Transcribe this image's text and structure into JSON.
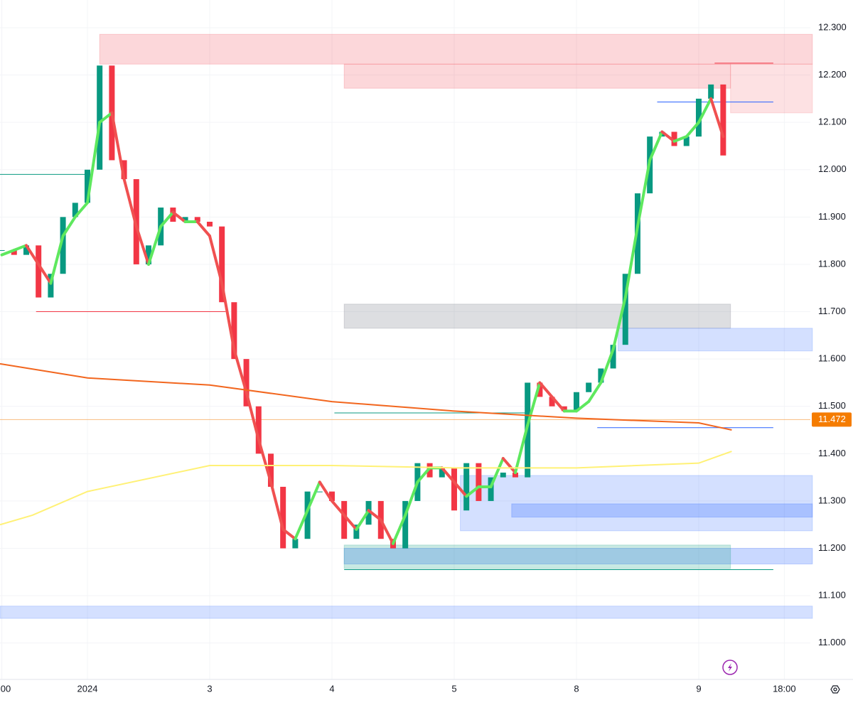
{
  "chart_data": {
    "type": "candlestick",
    "xlim": [
      -0.15,
      66.13
    ],
    "ylim": [
      10.917,
      12.3585
    ],
    "xticks": [
      {
        "value": 0,
        "label": "00"
      },
      {
        "value": 7,
        "label": "2024"
      },
      {
        "value": 17,
        "label": "3"
      },
      {
        "value": 27,
        "label": "4"
      },
      {
        "value": 37,
        "label": "5"
      },
      {
        "value": 47,
        "label": "8"
      },
      {
        "value": 57,
        "label": "9"
      },
      {
        "value": 64,
        "label": "18:00"
      }
    ],
    "yticks": [
      {
        "value": 12.3,
        "label": "12.300"
      },
      {
        "value": 12.2,
        "label": "12.200"
      },
      {
        "value": 12.1,
        "label": "12.100"
      },
      {
        "value": 12.0,
        "label": "12.000"
      },
      {
        "value": 11.9,
        "label": "11.900"
      },
      {
        "value": 11.8,
        "label": "11.800"
      },
      {
        "value": 11.7,
        "label": "11.700"
      },
      {
        "value": 11.6,
        "label": "11.600"
      },
      {
        "value": 11.5,
        "label": "11.500"
      },
      {
        "value": 11.4,
        "label": "11.400"
      },
      {
        "value": 11.3,
        "label": "11.300"
      },
      {
        "value": 11.2,
        "label": "11.200"
      },
      {
        "value": 11.1,
        "label": "11.100"
      },
      {
        "value": 11.0,
        "label": "11.000"
      }
    ],
    "grid": true,
    "last_price": 11.472,
    "last_price_color": "#f57c00",
    "zones": [
      {
        "x": [
          8.0,
          66.3
        ],
        "ylim": [
          12.223,
          12.286
        ],
        "color": "rgba(242,54,69,0.2)"
      },
      {
        "x": [
          28.0,
          59.6
        ],
        "ylim": [
          12.172,
          12.223
        ],
        "color": "rgba(242,54,69,0.2)"
      },
      {
        "x": [
          59.6,
          66.3
        ],
        "ylim": [
          12.12,
          12.223
        ],
        "color": "rgba(242,54,69,0.15)"
      },
      {
        "x": [
          28.0,
          59.6
        ],
        "ylim": [
          11.665,
          11.716
        ],
        "color": "rgba(120,123,134,0.25)"
      },
      {
        "x": [
          50.4,
          66.3
        ],
        "ylim": [
          11.617,
          11.665
        ],
        "color": "rgba(41,98,255,0.2)"
      },
      {
        "x": [
          37.5,
          66.3
        ],
        "ylim": [
          11.237,
          11.354
        ],
        "color": "rgba(41,98,255,0.2)"
      },
      {
        "x": [
          41.7,
          66.3
        ],
        "ylim": [
          11.266,
          11.294
        ],
        "color": "rgba(41,98,255,0.25)"
      },
      {
        "x": [
          28.0,
          66.3
        ],
        "ylim": [
          11.167,
          11.2
        ],
        "color": "rgba(41,98,255,0.25)"
      },
      {
        "x": [
          28.0,
          59.6
        ],
        "ylim": [
          11.157,
          11.207
        ],
        "color": "rgba(8,153,129,0.22)"
      },
      {
        "x": [
          -0.15,
          66.3
        ],
        "ylim": [
          11.052,
          11.078
        ],
        "color": "rgba(41,98,255,0.2)"
      }
    ],
    "levels": [
      {
        "x": [
          -0.15,
          7
        ],
        "value": 11.99,
        "color": "#089981"
      },
      {
        "x": [
          2.8,
          18.3
        ],
        "value": 11.7,
        "color": "#f23645"
      },
      {
        "x": [
          53.6,
          63.1
        ],
        "value": 12.143,
        "color": "#2962ff"
      },
      {
        "x": [
          58.3,
          63.1
        ],
        "value": 12.225,
        "color": "#f23645"
      },
      {
        "x": [
          48.7,
          63.1
        ],
        "value": 11.455,
        "color": "#2962ff"
      },
      {
        "x": [
          28.0,
          63.1
        ],
        "value": 11.155,
        "color": "#089981"
      },
      {
        "x": [
          27.2,
          42.9
        ],
        "value": 11.486,
        "color": "#089981"
      }
    ],
    "series": [
      {
        "kind": "candles",
        "up_color": "#089981",
        "down_color": "#f23645",
        "x": [
          0,
          1,
          2,
          3,
          4,
          5,
          6,
          7,
          8,
          9,
          10,
          11,
          12,
          13,
          14,
          15,
          16,
          17,
          18,
          19,
          20,
          21,
          22,
          23,
          24,
          25,
          26,
          27,
          28,
          29,
          30,
          31,
          32,
          33,
          34,
          35,
          36,
          37,
          38,
          39,
          40,
          41,
          42,
          43,
          44,
          45,
          46,
          47,
          48,
          49,
          50,
          51,
          52,
          53,
          54,
          55,
          56,
          57,
          58,
          59
        ],
        "values": [
          11.83,
          11.82,
          11.84,
          11.73,
          11.78,
          11.9,
          11.93,
          12.0,
          12.22,
          12.02,
          11.98,
          11.8,
          11.84,
          11.92,
          11.89,
          11.9,
          11.89,
          11.88,
          11.72,
          11.6,
          11.5,
          11.4,
          11.33,
          11.2,
          11.22,
          11.32,
          11.32,
          11.3,
          11.22,
          11.25,
          11.3,
          11.22,
          11.2,
          11.3,
          11.38,
          11.35,
          11.37,
          11.28,
          11.38,
          11.3,
          11.35,
          11.36,
          11.35,
          11.55,
          11.52,
          11.5,
          11.49,
          11.53,
          11.55,
          11.58,
          11.63,
          11.78,
          11.95,
          12.07,
          12.08,
          12.05,
          12.07,
          12.15,
          12.18,
          12.03
        ]
      },
      {
        "kind": "trend",
        "up_color": "#5ee85e",
        "down_color": "#f05050",
        "x": [
          0,
          1,
          2,
          3,
          4,
          5,
          6,
          7,
          8,
          9,
          10,
          11,
          12,
          13,
          14,
          15,
          16,
          17,
          18,
          19,
          20,
          21,
          22,
          23,
          24,
          25,
          26,
          27,
          28,
          29,
          30,
          31,
          32,
          33,
          34,
          35,
          36,
          37,
          38,
          39,
          40,
          41,
          42,
          43,
          44,
          45,
          46,
          47,
          48,
          49,
          50,
          51,
          52,
          53,
          54,
          55,
          56,
          57,
          58,
          59
        ],
        "values": [
          11.82,
          11.83,
          11.84,
          11.8,
          11.76,
          11.86,
          11.9,
          11.93,
          12.1,
          12.12,
          11.98,
          11.88,
          11.8,
          11.88,
          11.91,
          11.89,
          11.89,
          11.86,
          11.76,
          11.62,
          11.53,
          11.43,
          11.34,
          11.24,
          11.22,
          11.28,
          11.34,
          11.3,
          11.27,
          11.24,
          11.28,
          11.26,
          11.21,
          11.27,
          11.34,
          11.37,
          11.37,
          11.34,
          11.31,
          11.33,
          11.33,
          11.39,
          11.36,
          11.46,
          11.55,
          11.52,
          11.49,
          11.49,
          11.51,
          11.55,
          11.62,
          11.73,
          11.88,
          12.02,
          12.08,
          12.06,
          12.07,
          12.1,
          12.15,
          12.07
        ]
      },
      {
        "kind": "line",
        "color": "#f2661e",
        "x": [
          -0.15,
          7,
          17,
          27,
          37,
          47,
          57,
          59.7
        ],
        "values": [
          11.59,
          11.56,
          11.545,
          11.51,
          11.49,
          11.475,
          11.465,
          11.45
        ]
      },
      {
        "kind": "line",
        "color": "#fff176",
        "x": [
          -0.15,
          2.5,
          7,
          17,
          27,
          37,
          47,
          57,
          59.7
        ],
        "values": [
          11.25,
          11.27,
          11.32,
          11.375,
          11.375,
          11.37,
          11.37,
          11.38,
          11.405
        ]
      }
    ]
  }
}
